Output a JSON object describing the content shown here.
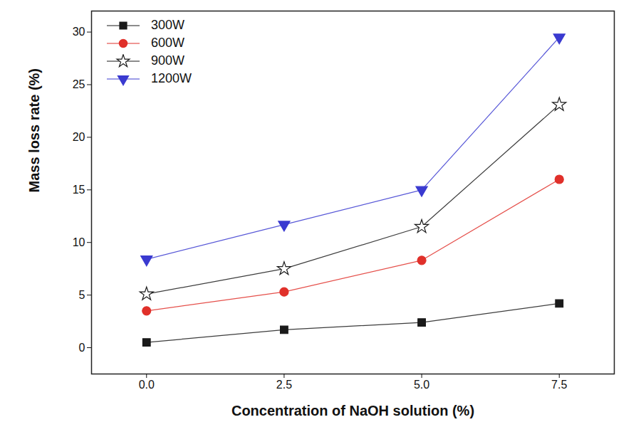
{
  "chart_data": {
    "type": "line",
    "xlabel": "Concentration of NaOH solution (%)",
    "ylabel": "Mass loss rate (%)",
    "x": [
      0,
      2.5,
      5,
      7.5
    ],
    "xlim": [
      -1,
      8.5
    ],
    "xticks": [
      {
        "value": 0,
        "label": "0.0"
      },
      2.5,
      {
        "value": 5,
        "label": "5.0"
      },
      7.5
    ],
    "ylim": [
      -2.5,
      32
    ],
    "yticks": [
      0,
      5,
      10,
      15,
      20,
      25,
      30
    ],
    "grid": false,
    "legend": "top-left",
    "series": [
      {
        "name": "300W",
        "color": "#1a1a1a",
        "marker": "square",
        "values": [
          0.5,
          1.7,
          2.4,
          4.2
        ]
      },
      {
        "name": "600W",
        "color": "#e0302a",
        "marker": "circle",
        "values": [
          3.5,
          5.3,
          8.3,
          16.0
        ]
      },
      {
        "name": "900W",
        "color": "#1a1a1a",
        "marker": "star-open",
        "values": [
          5.1,
          7.5,
          11.5,
          23.1
        ]
      },
      {
        "name": "1200W",
        "color": "#3a3ad0",
        "marker": "triangle-down",
        "values": [
          8.4,
          11.7,
          15.0,
          29.5
        ]
      }
    ]
  }
}
